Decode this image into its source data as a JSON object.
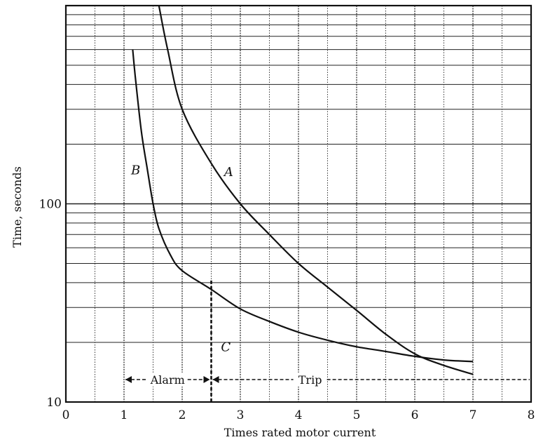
{
  "chart_data": {
    "type": "line",
    "xlabel": "Times rated motor current",
    "ylabel": "Time, seconds",
    "xlim": [
      0,
      8
    ],
    "ylim": [
      10,
      1000
    ],
    "yscale": "log",
    "grid": true,
    "x_ticks": [
      "0",
      "1",
      "2",
      "3",
      "4",
      "5",
      "6",
      "7",
      "8"
    ],
    "y_ticks": [
      {
        "value": 10,
        "label": "10"
      },
      {
        "value": 100,
        "label": "100"
      }
    ],
    "series": [
      {
        "name": "A",
        "x": [
          1.6,
          1.75,
          2.0,
          2.5,
          3.0,
          3.5,
          4.0,
          4.5,
          5.0,
          5.5,
          6.0,
          6.5,
          7.0
        ],
        "y": [
          1000,
          600,
          300,
          160,
          100,
          70,
          50,
          38,
          29,
          22,
          17.5,
          15.3,
          13.8
        ]
      },
      {
        "name": "B",
        "x": [
          1.15,
          1.2,
          1.3,
          1.4,
          1.5,
          1.6,
          1.8,
          2.0,
          2.5,
          3.0,
          3.5,
          4.0,
          4.5,
          5.0,
          5.5,
          6.0,
          6.5,
          7.0
        ],
        "y": [
          600,
          420,
          230,
          150,
          100,
          75,
          55,
          46,
          37,
          29.5,
          25.5,
          22.5,
          20.5,
          19,
          18,
          17,
          16.3,
          16
        ]
      }
    ],
    "annotations": [
      {
        "text": "A",
        "x": 2.8,
        "y": 145
      },
      {
        "text": "B",
        "x": 1.2,
        "y": 148
      },
      {
        "text": "C",
        "x": 2.75,
        "y": 19
      }
    ],
    "vertical_line": {
      "x": 2.5,
      "style": "dashed",
      "label": "C"
    },
    "regions": [
      {
        "label": "Alarm",
        "x_start": 1.0,
        "x_end": 2.5
      },
      {
        "label": "Trip",
        "x_start": 2.5,
        "x_end": 8.0
      }
    ]
  }
}
